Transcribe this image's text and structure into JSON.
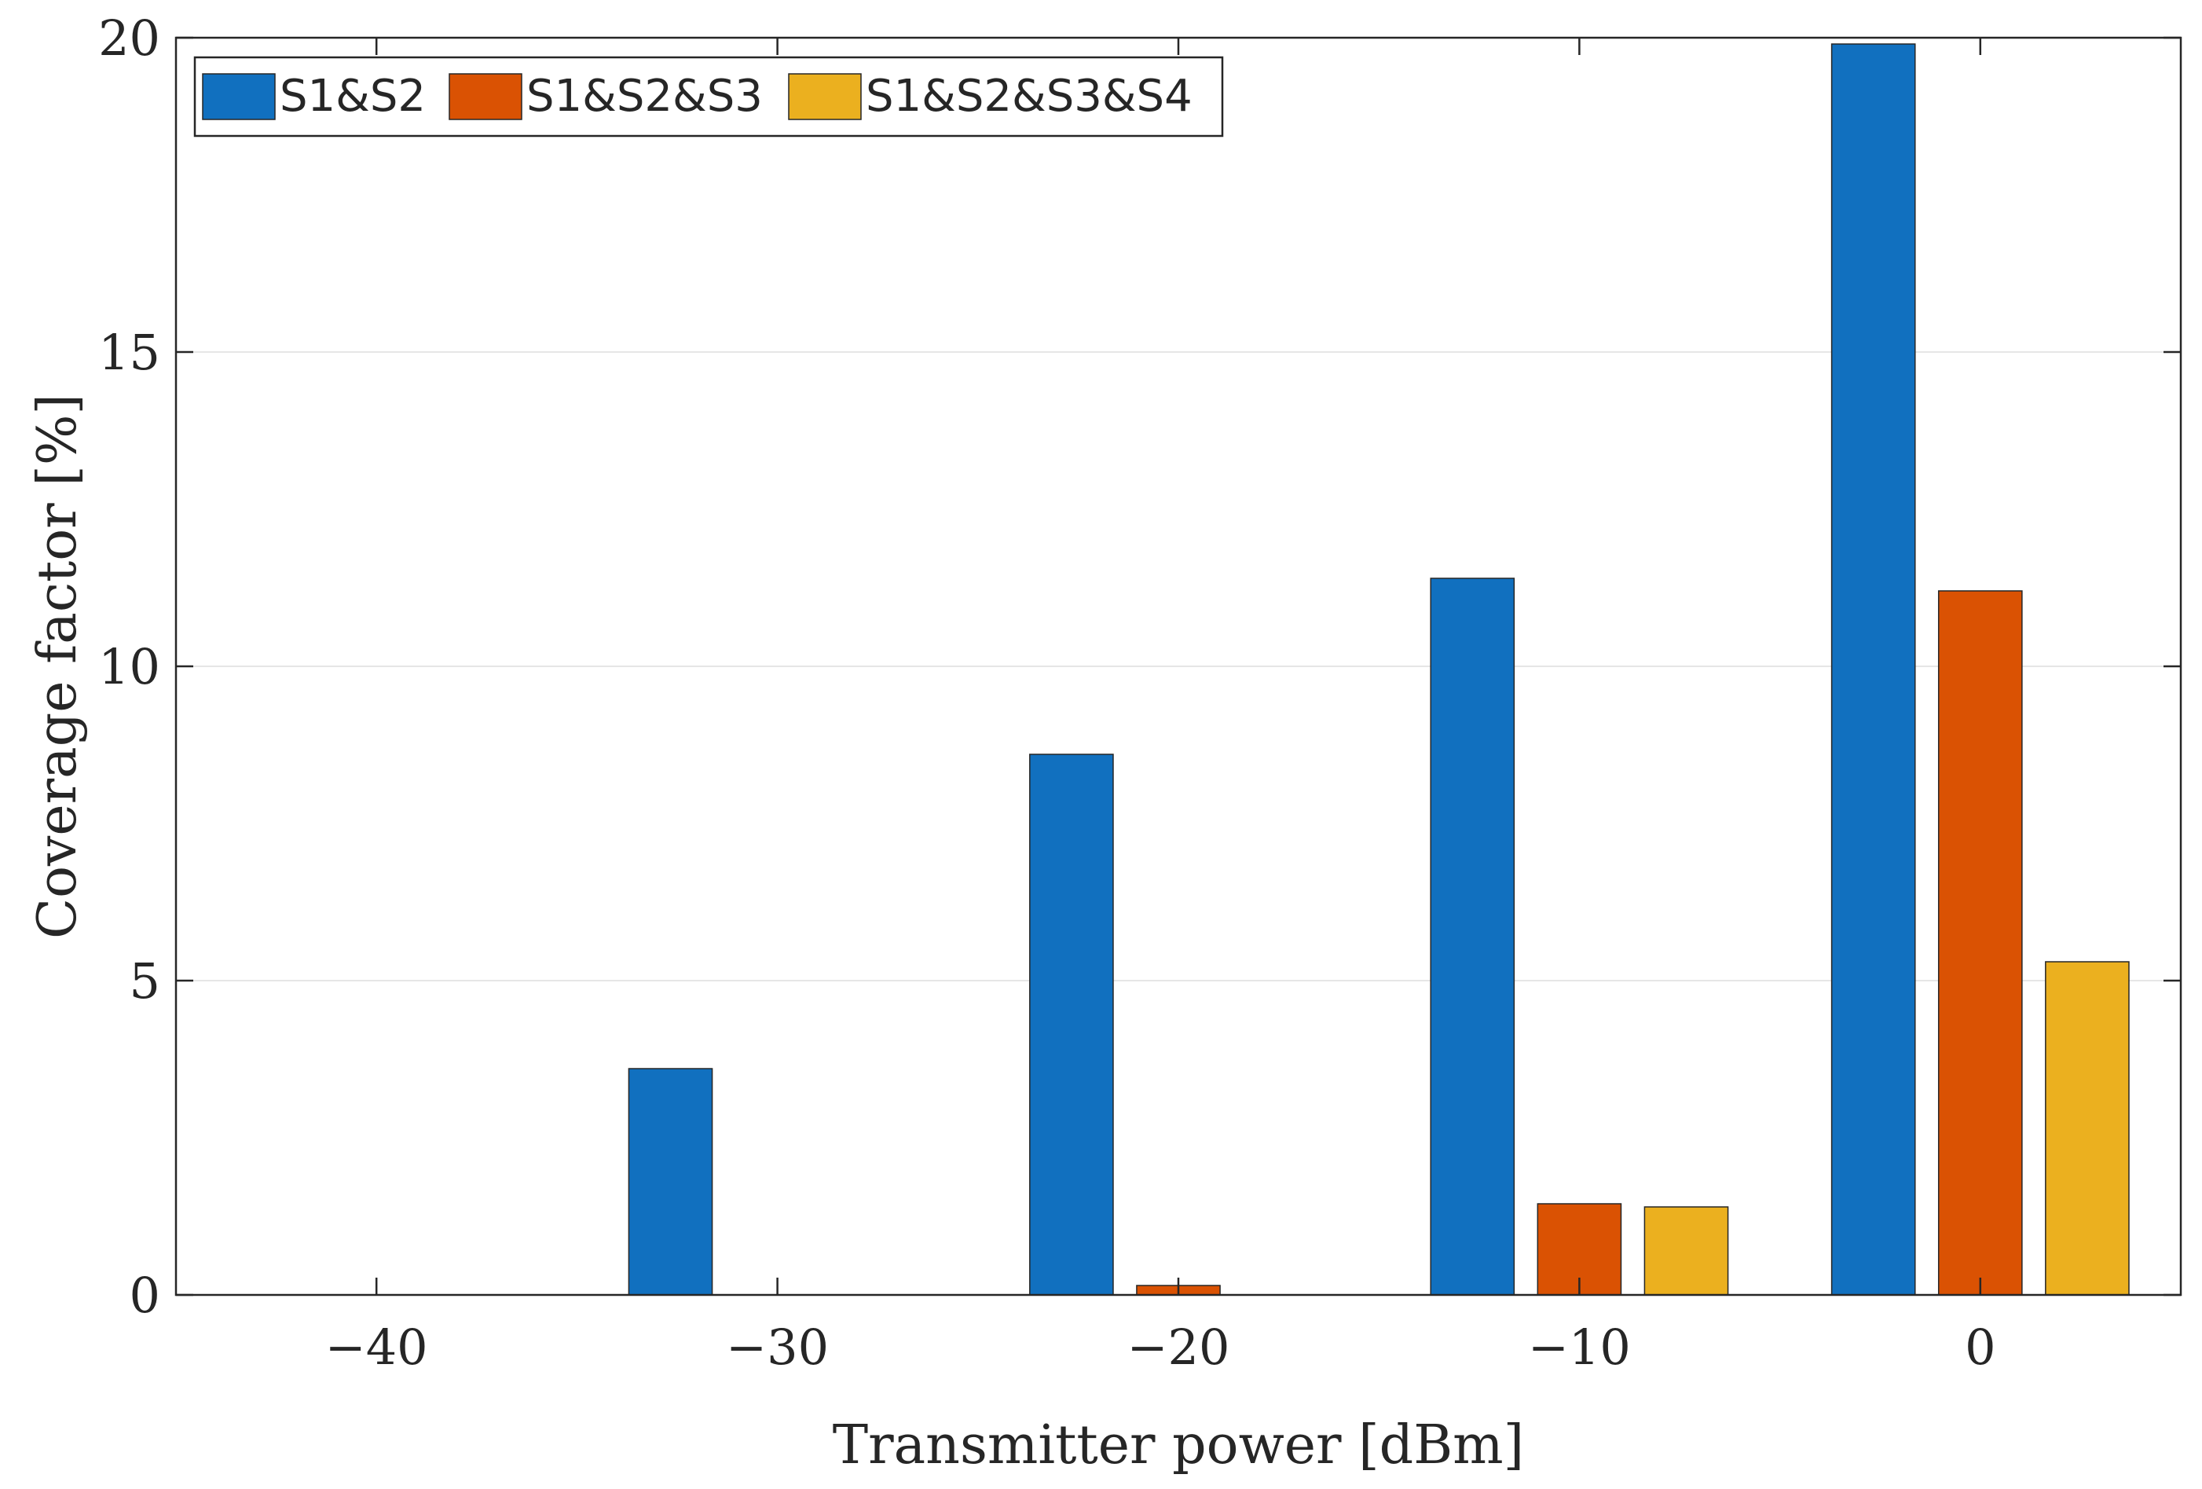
{
  "chart_data": {
    "type": "bar",
    "title": "",
    "xlabel": "Transmitter power [dBm]",
    "ylabel": "Coverage factor [%]",
    "x": [
      -40,
      -30,
      -20,
      -10,
      0
    ],
    "xtick_labels": [
      "−40",
      "−30",
      "−20",
      "−10",
      "0"
    ],
    "xlim": [
      -45,
      5
    ],
    "ylim": [
      0,
      20
    ],
    "yticks": [
      0,
      5,
      10,
      15,
      20
    ],
    "ytick_labels": [
      "0",
      "5",
      "10",
      "15",
      "20"
    ],
    "grid": true,
    "legend_position": "top-left",
    "series": [
      {
        "name": "S1&S2",
        "color": "#1170BF",
        "values": [
          0,
          3.6,
          8.6,
          11.4,
          19.9
        ]
      },
      {
        "name": "S1&S2&S3",
        "color": "#DA5203",
        "values": [
          0,
          0,
          0.15,
          1.45,
          11.2
        ]
      },
      {
        "name": "S1&S2&S3&S4",
        "color": "#EBB01F",
        "values": [
          0,
          0,
          0,
          1.4,
          5.3
        ]
      }
    ]
  }
}
